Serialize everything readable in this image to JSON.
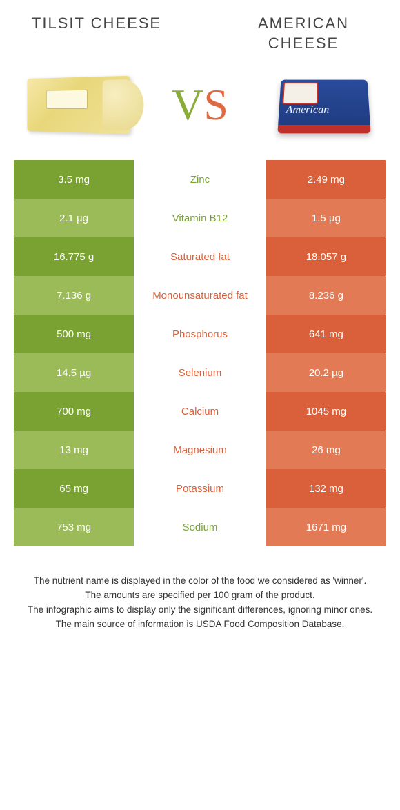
{
  "titles": {
    "left": "TILSIT CHEESE",
    "right": "AMERICAN CHEESE"
  },
  "vs": {
    "v": "V",
    "s": "S"
  },
  "american_pack_label": "American",
  "colors": {
    "green_dark": "#7aa233",
    "green_light": "#9bbb59",
    "orange_dark": "#d9603a",
    "orange_light": "#e27b55",
    "background": "#ffffff",
    "text": "#333333"
  },
  "table": {
    "fontsize": 15,
    "rows": [
      {
        "left": "3.5 mg",
        "label": "Zinc",
        "right": "2.49 mg",
        "winner": "left",
        "shade": "dark"
      },
      {
        "left": "2.1 µg",
        "label": "Vitamin B12",
        "right": "1.5 µg",
        "winner": "left",
        "shade": "light"
      },
      {
        "left": "16.775 g",
        "label": "Saturated fat",
        "right": "18.057 g",
        "winner": "right",
        "shade": "dark"
      },
      {
        "left": "7.136 g",
        "label": "Monounsaturated fat",
        "right": "8.236 g",
        "winner": "right",
        "shade": "light"
      },
      {
        "left": "500 mg",
        "label": "Phosphorus",
        "right": "641 mg",
        "winner": "right",
        "shade": "dark"
      },
      {
        "left": "14.5 µg",
        "label": "Selenium",
        "right": "20.2 µg",
        "winner": "right",
        "shade": "light"
      },
      {
        "left": "700 mg",
        "label": "Calcium",
        "right": "1045 mg",
        "winner": "right",
        "shade": "dark"
      },
      {
        "left": "13 mg",
        "label": "Magnesium",
        "right": "26 mg",
        "winner": "right",
        "shade": "light"
      },
      {
        "left": "65 mg",
        "label": "Potassium",
        "right": "132 mg",
        "winner": "right",
        "shade": "dark"
      },
      {
        "left": "753 mg",
        "label": "Sodium",
        "right": "1671 mg",
        "winner": "left",
        "shade": "light"
      }
    ]
  },
  "footer": {
    "line1": "The nutrient name is displayed in the color of the food we considered as 'winner'.",
    "line2": "The amounts are specified per 100 gram of the product.",
    "line3": "The infographic aims to display only the significant differences, ignoring minor ones.",
    "line4": "The main source of information is USDA Food Composition Database."
  }
}
